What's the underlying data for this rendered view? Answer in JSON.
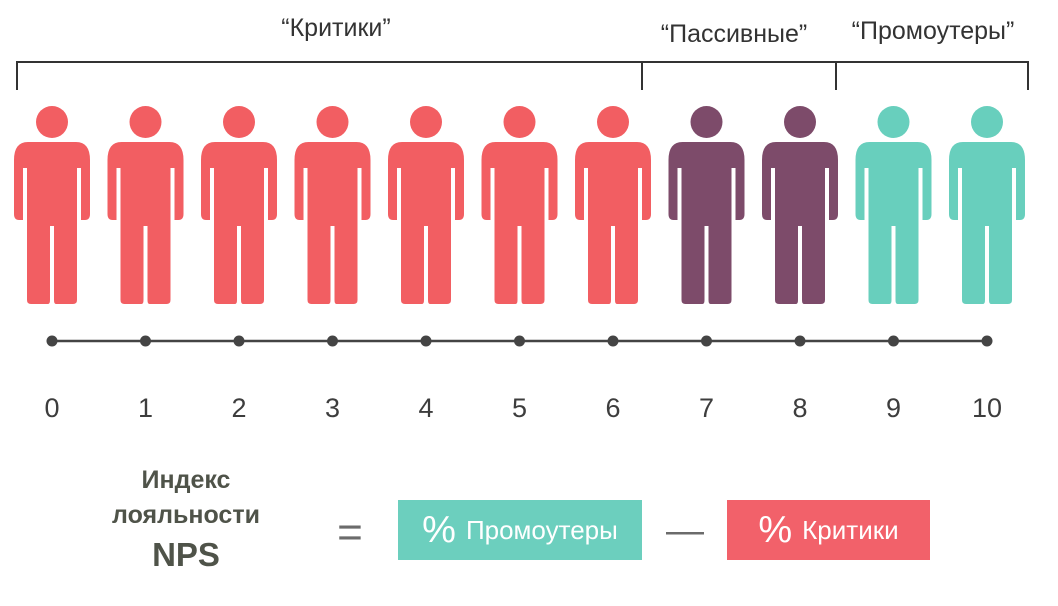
{
  "groups": {
    "critics_label": "“Критики”",
    "passives_label": "“Пассивные”",
    "promoters_label": "“Промоутеры”"
  },
  "scale": [
    "0",
    "1",
    "2",
    "3",
    "4",
    "5",
    "6",
    "7",
    "8",
    "9",
    "10"
  ],
  "figure_groups": [
    "critic",
    "critic",
    "critic",
    "critic",
    "critic",
    "critic",
    "critic",
    "passive",
    "passive",
    "promoter",
    "promoter"
  ],
  "colors": {
    "critic": "#f25e62",
    "passive": "#7d4b6a",
    "promoter": "#68cfbd",
    "bracket": "#333333",
    "scale_line": "#444444",
    "text_dark": "#4f5349"
  },
  "formula": {
    "title_line1": "Индекс",
    "title_line2": "лояльности",
    "title_line3": "NPS",
    "equals": "=",
    "minus": "—",
    "promoters_pct": "%",
    "promoters_label": "Промоутеры",
    "critics_pct": "%",
    "critics_label": "Критики"
  }
}
